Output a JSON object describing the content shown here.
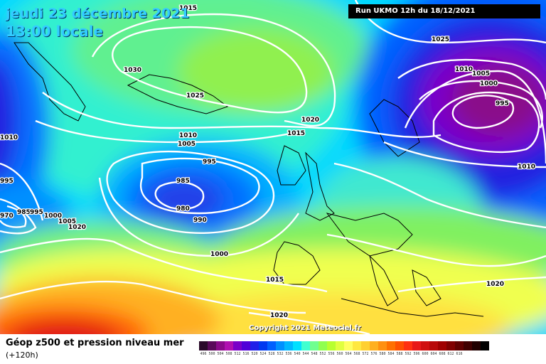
{
  "header": {
    "date": "jeudi 23 décembre 2021",
    "time": "13:00 locale",
    "run": "Run UKMO 12h du 18/12/2021"
  },
  "footer": {
    "title": "Géop z500 et pression niveau mer",
    "subtitle": "(+120h)",
    "copyright": "Copyright 2021 Meteociel.fr"
  },
  "legend": {
    "colors": [
      "#2a0a2a",
      "#5a0a5a",
      "#8a0a8a",
      "#b010b0",
      "#7a00c8",
      "#5000d8",
      "#2020e8",
      "#0038f0",
      "#0060ff",
      "#0090ff",
      "#00b8ff",
      "#00e0ff",
      "#40ffd0",
      "#70ff90",
      "#90ff50",
      "#b8ff30",
      "#e0ff40",
      "#ffff60",
      "#ffe840",
      "#ffd030",
      "#ffb020",
      "#ff9010",
      "#ff7000",
      "#ff5000",
      "#ff3010",
      "#e81818",
      "#d01010",
      "#b80808",
      "#a00000",
      "#800000",
      "#600000",
      "#400000",
      "#200000",
      "#000000"
    ],
    "values": [
      "496",
      "500",
      "504",
      "508",
      "512",
      "516",
      "520",
      "524",
      "528",
      "532",
      "536",
      "540",
      "544",
      "548",
      "552",
      "556",
      "560",
      "564",
      "568",
      "572",
      "576",
      "580",
      "584",
      "588",
      "592",
      "596",
      "600",
      "604",
      "608",
      "612",
      "616"
    ]
  },
  "isobar_labels": [
    "1015",
    "1030",
    "1025",
    "1020",
    "1015",
    "1010",
    "1005",
    "995",
    "985",
    "980",
    "990",
    "1000",
    "1015",
    "1020",
    "1025",
    "1010",
    "1005",
    "1000",
    "995",
    "1010",
    "1020",
    "1010",
    "995",
    "970",
    "985",
    "995",
    "1000",
    "1005",
    "1020"
  ]
}
